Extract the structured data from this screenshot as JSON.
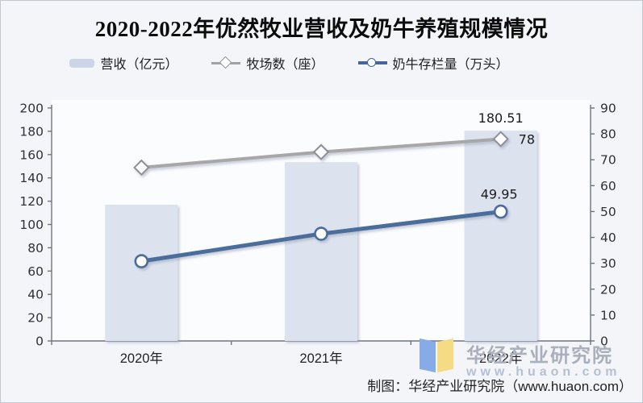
{
  "title": "2020-2022年优然牧业营收及奶牛养殖规模情况",
  "legend": {
    "items": [
      {
        "label": "营收（亿元）",
        "swatch": "bar-swatch",
        "color": "#ccd5e6"
      },
      {
        "label": "牧场数（座）",
        "swatch": "diamond-line-swatch",
        "color": "#a0a2a6"
      },
      {
        "label": "奶牛存栏量（万头）",
        "swatch": "circle-line-swatch",
        "color": "#44679b"
      }
    ]
  },
  "chart_data": {
    "type": "bar",
    "subtype": "combo-bar-line-dual-axis",
    "categories": [
      "2020年",
      "2021年",
      "2022年"
    ],
    "series": [
      {
        "name": "营收（亿元）",
        "type": "bar",
        "axis": "left",
        "color": "#dce2ee",
        "values": [
          117,
          153.5,
          180.51
        ],
        "value_labels": [
          "",
          "",
          "180.51"
        ]
      },
      {
        "name": "牧场数（座）",
        "type": "line",
        "marker": "diamond",
        "axis": "right",
        "color": "#a7a7a7",
        "values": [
          67,
          73,
          78
        ],
        "value_labels": [
          "",
          "",
          "78"
        ]
      },
      {
        "name": "奶牛存栏量（万头）",
        "type": "line",
        "marker": "circle",
        "axis": "right",
        "color": "#4c6d9c",
        "values": [
          30.8,
          41.4,
          49.95
        ],
        "value_labels": [
          "",
          "",
          "49.95"
        ]
      }
    ],
    "left_axis": {
      "min": 0,
      "max": 200,
      "step": 20,
      "ticks": [
        0,
        20,
        40,
        60,
        80,
        100,
        120,
        140,
        160,
        180,
        200
      ]
    },
    "right_axis": {
      "min": 0,
      "max": 90,
      "step": 10,
      "ticks": [
        0,
        10,
        20,
        30,
        40,
        50,
        60,
        70,
        80,
        90
      ]
    },
    "grid": false,
    "legend_position": "top",
    "tick_label_color": "#2e3138",
    "axis_line_color": "#6e7480"
  },
  "watermark": {
    "name": "华经产业研究院",
    "url": "www.huaon.com",
    "logo_colors": {
      "left_page": "#86abe6",
      "right_page": "#f5db84"
    }
  },
  "footer": {
    "credit": "制图：华经产业研究院（www.huaon.com）"
  }
}
